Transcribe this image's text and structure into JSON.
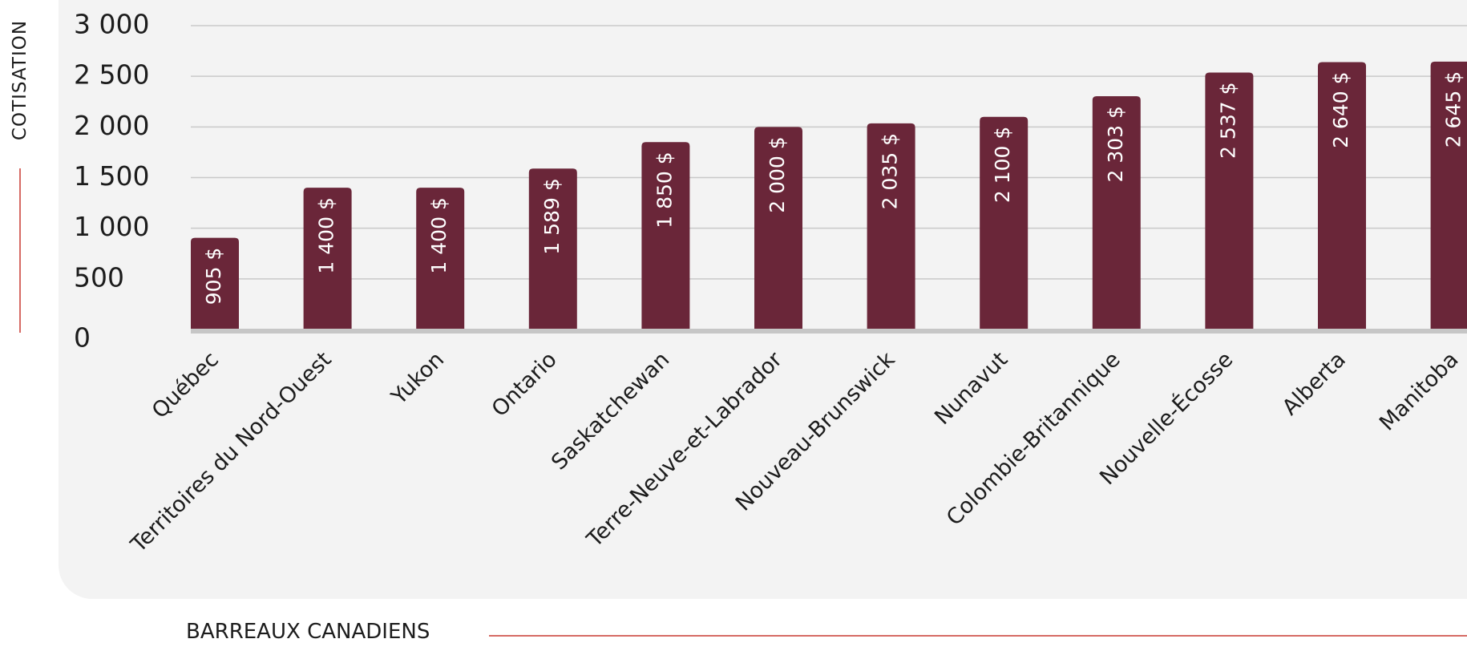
{
  "chart_data": {
    "type": "bar",
    "xlabel": "BARREAUX CANADIENS",
    "ylabel": "COTISATION",
    "ylim": [
      0,
      3000
    ],
    "yticks": [
      "0",
      "500",
      "1 000",
      "1 500",
      "2 000",
      "2 500",
      "3 000"
    ],
    "grid": true,
    "categories": [
      "Québec",
      "Territoires du Nord-Ouest",
      "Yukon",
      "Ontario",
      "Saskatchewan",
      "Terre-Neuve-et-Labrador",
      "Nouveau-Brunswick",
      "Nunavut",
      "Colombie-Britannique",
      "Nouvelle-Écosse",
      "Alberta",
      "Manitoba"
    ],
    "values": [
      905,
      1400,
      1400,
      1589,
      1850,
      2000,
      2035,
      2100,
      2303,
      2537,
      2640,
      2645
    ],
    "data_labels": [
      "905 $",
      "1 400 $",
      "1 400 $",
      "1 589 $",
      "1 850 $",
      "2 000 $",
      "2 035 $",
      "2 100 $",
      "2 303 $",
      "2 537 $",
      "2 640 $",
      "2 645 $"
    ],
    "colors": {
      "bar": "#6a2639",
      "grid": "#c9c9c9",
      "baseline": "#c6c6c6",
      "accent": "#d66a64",
      "panel": "#f3f3f3"
    }
  }
}
